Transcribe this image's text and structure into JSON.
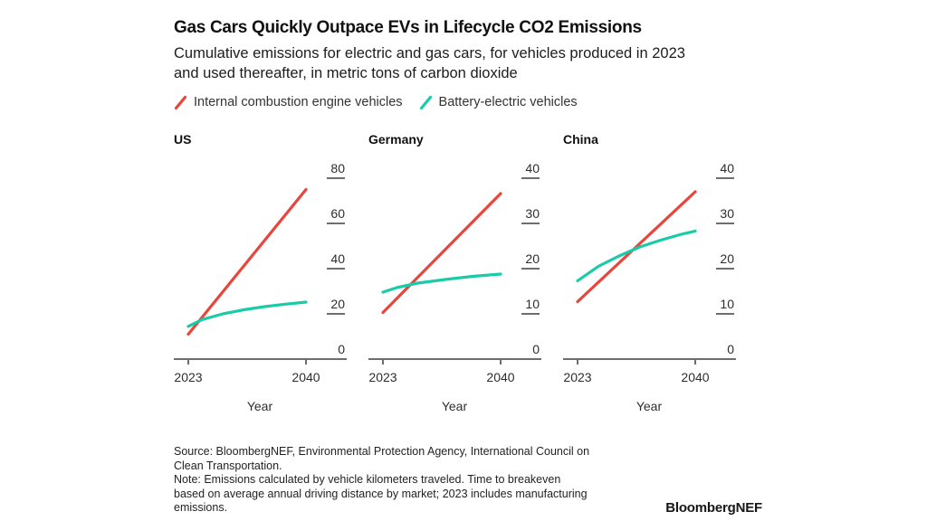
{
  "header": {
    "title": "Gas Cars Quickly Outpace EVs in Lifecycle CO2 Emissions",
    "subtitle_line1": "Cumulative emissions for electric and gas cars, for vehicles produced in 2023",
    "subtitle_line2": "and used thereafter, in metric tons of carbon dioxide"
  },
  "legend": {
    "items": [
      {
        "label": "Internal combustion engine vehicles",
        "color": "#e8463c"
      },
      {
        "label": "Battery-electric vehicles",
        "color": "#19cba6"
      }
    ]
  },
  "chart_data": {
    "type": "line",
    "x": "Year",
    "charts": [
      {
        "title": "US",
        "xlabel": "Year",
        "x_range": [
          2023,
          2040
        ],
        "xticks": [
          "2023",
          "2040"
        ],
        "ylim": [
          0,
          80
        ],
        "yticks": [
          80,
          60,
          40,
          20,
          0
        ],
        "series": [
          {
            "id": "ice",
            "name": "Internal combustion engine vehicles",
            "color": "#e8463c",
            "points": [
              [
                2023,
                11
              ],
              [
                2040,
                75
              ]
            ]
          },
          {
            "id": "ev",
            "name": "Battery-electric vehicles",
            "color": "#19cba6",
            "points": [
              [
                2023,
                14.5
              ],
              [
                2025,
                17.5
              ],
              [
                2028,
                20
              ],
              [
                2031,
                21.8
              ],
              [
                2034,
                23.2
              ],
              [
                2037,
                24.3
              ],
              [
                2040,
                25.2
              ]
            ]
          }
        ]
      },
      {
        "title": "Germany",
        "xlabel": "Year",
        "x_range": [
          2023,
          2040
        ],
        "xticks": [
          "2023",
          "2040"
        ],
        "ylim": [
          0,
          40
        ],
        "yticks": [
          40,
          30,
          20,
          10,
          0
        ],
        "series": [
          {
            "id": "ice",
            "name": "Internal combustion engine vehicles",
            "color": "#e8463c",
            "points": [
              [
                2023,
                10.3
              ],
              [
                2040,
                36.6
              ]
            ]
          },
          {
            "id": "ev",
            "name": "Battery-electric vehicles",
            "color": "#19cba6",
            "points": [
              [
                2023,
                14.8
              ],
              [
                2025,
                15.8
              ],
              [
                2028,
                16.8
              ],
              [
                2032,
                17.6
              ],
              [
                2036,
                18.3
              ],
              [
                2040,
                18.8
              ]
            ]
          }
        ]
      },
      {
        "title": "China",
        "xlabel": "Year",
        "x_range": [
          2023,
          2040
        ],
        "xticks": [
          "2023",
          "2040"
        ],
        "ylim": [
          0,
          40
        ],
        "yticks": [
          40,
          30,
          20,
          10,
          0
        ],
        "series": [
          {
            "id": "ice",
            "name": "Internal combustion engine vehicles",
            "color": "#e8463c",
            "points": [
              [
                2023,
                12.7
              ],
              [
                2040,
                37
              ]
            ]
          },
          {
            "id": "ev",
            "name": "Battery-electric vehicles",
            "color": "#19cba6",
            "points": [
              [
                2023,
                17.3
              ],
              [
                2026,
                20.5
              ],
              [
                2029,
                22.8
              ],
              [
                2032,
                24.8
              ],
              [
                2035,
                26.3
              ],
              [
                2038,
                27.6
              ],
              [
                2040,
                28.3
              ]
            ]
          }
        ]
      }
    ]
  },
  "footnote": {
    "lines": [
      "Source: BloombergNEF, Environmental Protection Agency, International Council on",
      "Clean Transportation.",
      "Note: Emissions calculated by vehicle kilometers traveled. Time to breakeven",
      "based on average annual driving distance by market; 2023 includes manufacturing",
      "emissions."
    ]
  },
  "brand": "BloombergNEF"
}
